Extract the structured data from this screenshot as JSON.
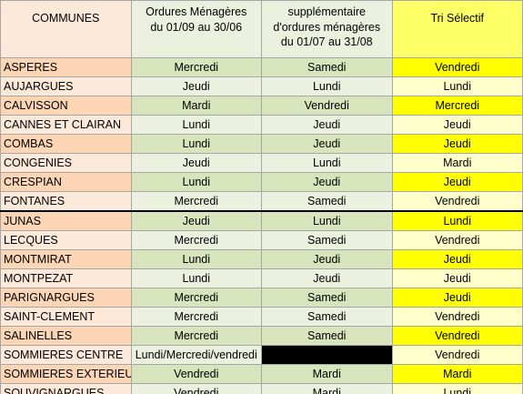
{
  "header": [
    [
      "COMMUNES"
    ],
    [
      "Ordures Ménagères",
      "du 01/09 au 30/06"
    ],
    [
      "supplémentaire",
      "d'ordures ménagères",
      "du  01/07 au 31/08"
    ],
    [
      "Tri Sélectif"
    ]
  ],
  "rows": [
    [
      "ASPERES",
      "Mercredi",
      "Samedi",
      "Vendredi"
    ],
    [
      "AUJARGUES",
      "Jeudi",
      "Lundi",
      "Lundi"
    ],
    [
      "CALVISSON",
      "Mardi",
      "Vendredi",
      "Mercredi"
    ],
    [
      "CANNES ET CLAIRAN",
      "Lundi",
      "Jeudi",
      "Jeudi"
    ],
    [
      "COMBAS",
      "Lundi",
      "Jeudi",
      "Jeudi"
    ],
    [
      "CONGENIES",
      "Jeudi",
      "Lundi",
      "Mardi"
    ],
    [
      "CRESPIAN",
      "Lundi",
      "Jeudi",
      "Jeudi"
    ],
    [
      "FONTANES",
      "Mercredi",
      "Samedi",
      "Vendredi"
    ],
    [
      "JUNAS",
      "Jeudi",
      "Lundi",
      "Lundi"
    ],
    [
      "LECQUES",
      "Mercredi",
      "Samedi",
      "Vendredi"
    ],
    [
      "MONTMIRAT",
      "Lundi",
      "Jeudi",
      "Jeudi"
    ],
    [
      "MONTPEZAT",
      "Lundi",
      "Jeudi",
      "Jeudi"
    ],
    [
      "PARIGNARGUES",
      "Mercredi",
      "Samedi",
      "Jeudi"
    ],
    [
      "SAINT-CLEMENT",
      "Mercredi",
      "Samedi",
      "Vendredi"
    ],
    [
      "SALINELLES",
      "Mercredi",
      "Samedi",
      "Vendredi"
    ],
    [
      "SOMMIERES CENTRE",
      "Lundi/Mercredi/vendredi",
      null,
      "Vendredi"
    ],
    [
      "SOMMIERES EXTERIEURS",
      "Vendredi",
      "Mardi",
      "Mardi"
    ],
    [
      "SOUVIGNARGUES",
      "Vendredi",
      "Mardi",
      "Lundi"
    ]
  ]
}
